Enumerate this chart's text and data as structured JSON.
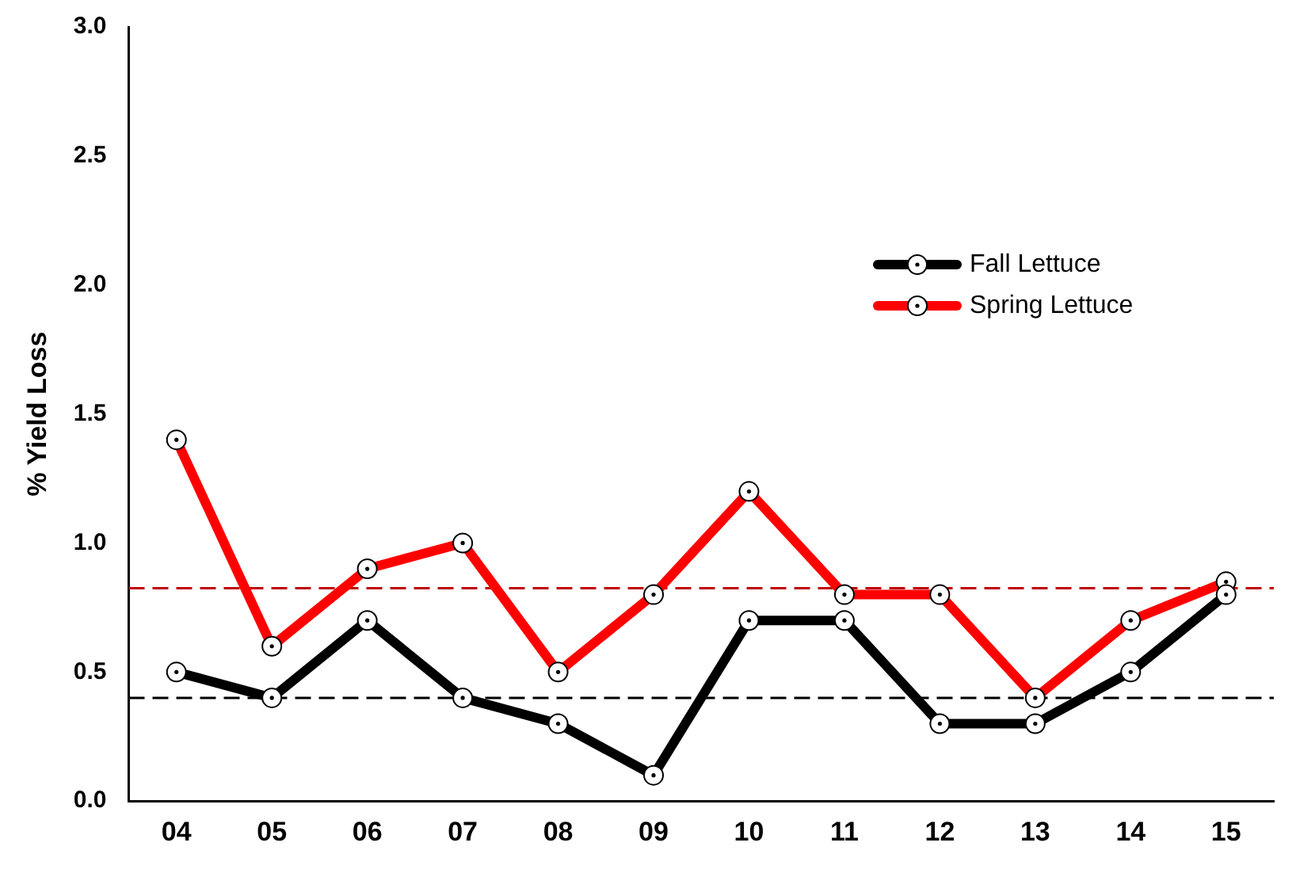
{
  "chart_data": {
    "type": "line",
    "ylabel": "% Yield Loss",
    "categories": [
      "04",
      "05",
      "06",
      "07",
      "08",
      "09",
      "10",
      "11",
      "12",
      "13",
      "14",
      "15"
    ],
    "series": [
      {
        "name": "Fall Lettuce",
        "color": "#000000",
        "values": [
          0.5,
          0.4,
          0.7,
          0.4,
          0.3,
          0.1,
          0.7,
          0.7,
          0.3,
          0.3,
          0.5,
          0.8
        ]
      },
      {
        "name": "Spring Lettuce",
        "color": "#ff0000",
        "values": [
          1.4,
          0.6,
          0.9,
          1.0,
          0.5,
          0.8,
          1.2,
          0.8,
          0.8,
          0.4,
          0.7,
          0.85
        ]
      }
    ],
    "ylim": [
      0,
      3
    ],
    "yticks": [
      {
        "value": 0,
        "label": "0.0"
      },
      {
        "value": 0.5,
        "label": "0.5"
      },
      {
        "value": 1,
        "label": "1.0"
      },
      {
        "value": 1.5,
        "label": "1.5"
      },
      {
        "value": 2,
        "label": "2.0"
      },
      {
        "value": 2.5,
        "label": "2.5"
      },
      {
        "value": 3,
        "label": "3.0"
      }
    ],
    "ref_lines": [
      {
        "axis": "y",
        "value": 0.4,
        "color": "#000000",
        "line_style": "dashed"
      },
      {
        "axis": "y",
        "value": 0.825,
        "color": "#c00000",
        "line_style": "dashed"
      }
    ],
    "grid": false,
    "legend": "top right",
    "marker": "circle",
    "line_style": "solid"
  }
}
